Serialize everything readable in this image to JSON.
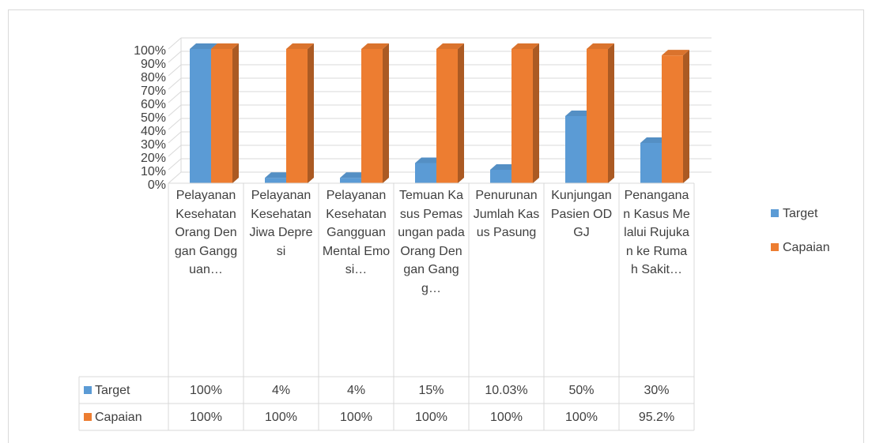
{
  "chart_data": {
    "type": "bar3d",
    "categories": [
      "Pelayanan Kesehatan Orang Dengan Gangguan…",
      "Pelayanan Kesehatan Jiwa Depresi",
      "Pelayanan Kesehatan Gangguan Mental Emosi…",
      "Temuan Kasus Pemasungan pada Orang Dengan Gangg…",
      "Penurunan Jumlah Kasus Pasung",
      "Kunjungan Pasien ODGJ",
      "Penanganan Kasus Melalui Rujukan ke Rumah Sakit…"
    ],
    "series": [
      {
        "name": "Target",
        "color": "#5b9bd5",
        "values": [
          100,
          4,
          4,
          15,
          10.03,
          50,
          30
        ],
        "value_labels": [
          "100%",
          "4%",
          "4%",
          "15%",
          "10.03%",
          "50%",
          "30%"
        ]
      },
      {
        "name": "Capaian",
        "color": "#ed7d31",
        "values": [
          100,
          100,
          100,
          100,
          100,
          100,
          95.2
        ],
        "value_labels": [
          "100%",
          "100%",
          "100%",
          "100%",
          "100%",
          "100%",
          "95.2%"
        ]
      }
    ],
    "ylim": [
      0,
      100
    ],
    "yticks": [
      {
        "value": 0,
        "label": "0%"
      },
      {
        "value": 10,
        "label": "10%"
      },
      {
        "value": 20,
        "label": "20%"
      },
      {
        "value": 30,
        "label": "30%"
      },
      {
        "value": 40,
        "label": "40%"
      },
      {
        "value": 50,
        "label": "50%"
      },
      {
        "value": 60,
        "label": "60%"
      },
      {
        "value": 70,
        "label": "70%"
      },
      {
        "value": 80,
        "label": "80%"
      },
      {
        "value": 90,
        "label": "90%"
      },
      {
        "value": 100,
        "label": "100%"
      }
    ],
    "grid": true,
    "legend": "right",
    "data_table": true
  }
}
